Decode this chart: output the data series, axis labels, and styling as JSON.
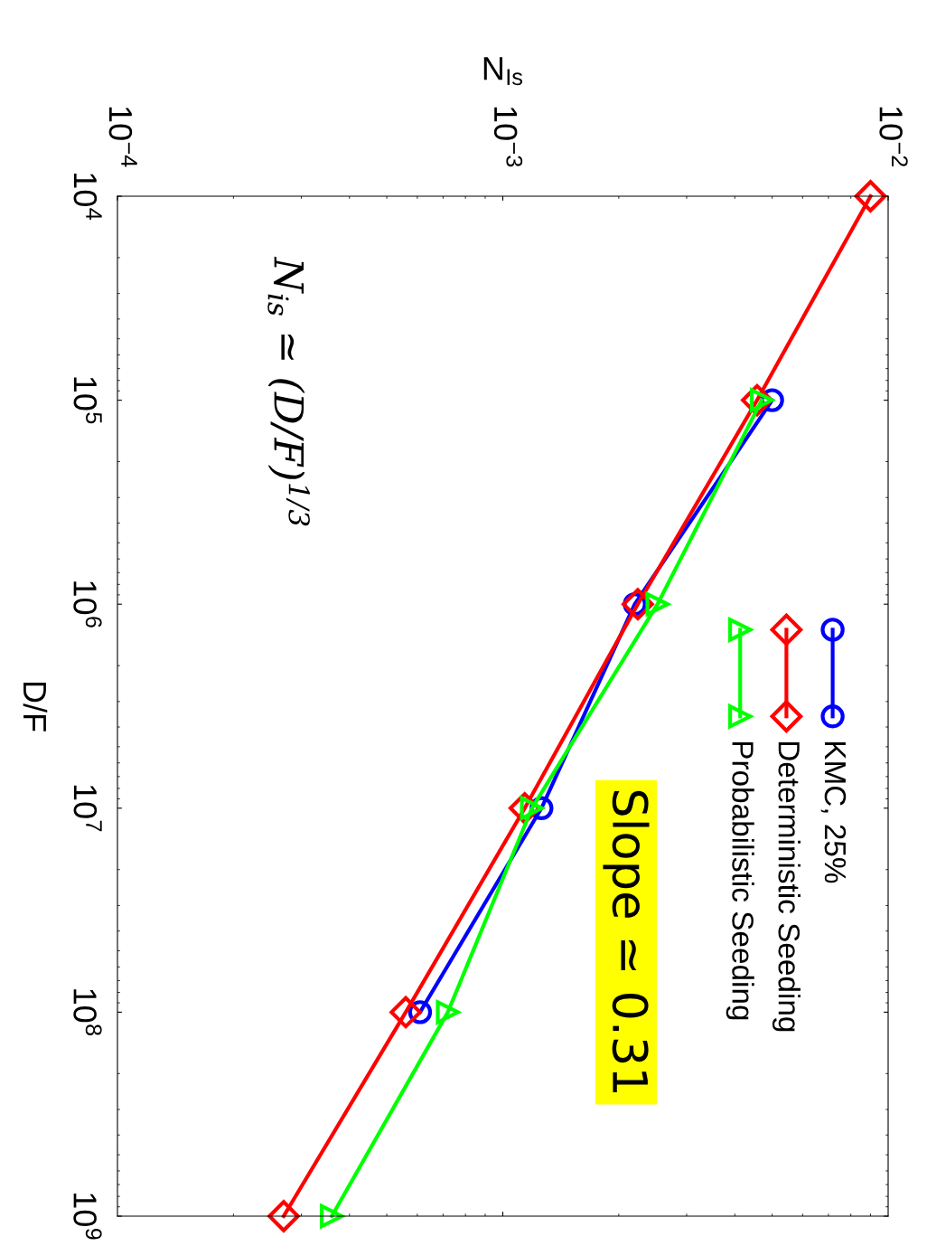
{
  "chart_data": {
    "type": "line",
    "xlabel": "N$_{Is}$",
    "ylabel": "D/F",
    "series": [
      {
        "name": "KMC, 25%",
        "color": "#0000ff",
        "marker": "circle",
        "x": [
          0.005,
          0.0022,
          0.00126,
          0.00061
        ],
        "values": [
          100000,
          1000000,
          10000000,
          100000000
        ]
      },
      {
        "name": "Deterministic Seeding",
        "color": "#ff0000",
        "marker": "diamond",
        "x": [
          0.009,
          0.00457,
          0.00224,
          0.00114,
          0.00056,
          0.00027
        ],
        "values": [
          10000,
          100000,
          1000000,
          10000000,
          100000000,
          1000000000
        ]
      },
      {
        "name": "Probabilistic Seeding",
        "color": "#00ff00",
        "marker": "triangle",
        "x": [
          0.0047,
          0.00252,
          0.00119,
          0.00072,
          0.00036
        ],
        "values": [
          100000,
          1000000,
          10000000,
          100000000,
          1000000000
        ]
      }
    ],
    "log": "xy",
    "ylim": [
      1000000000,
      10000
    ],
    "yticks": [
      {
        "value": 10000,
        "label": "10$^{4}$"
      },
      {
        "value": 100000,
        "label": "10$^{5}$"
      },
      {
        "value": 1000000,
        "label": "10$^{6}$"
      },
      {
        "value": 10000000,
        "label": "10$^{7}$"
      },
      {
        "value": 100000000,
        "label": "10$^{8}$"
      },
      {
        "value": 1000000000,
        "label": "10$^{9}$"
      }
    ],
    "xlim": [
      0.0001,
      0.01
    ],
    "xticks": [
      {
        "value": 0.0001,
        "label": "10$^{−4}$"
      },
      {
        "value": 0.001,
        "label": "10$^{−3}$"
      },
      {
        "value": 0.01,
        "label": "10$^{−2}$"
      }
    ],
    "legend": "bottom right",
    "grid": false,
    "line_style": "solid",
    "annotations": [
      "N$_{is}$ ≃ (D/F)$^{1/3}$",
      "Slope ≃ 0.31"
    ]
  }
}
